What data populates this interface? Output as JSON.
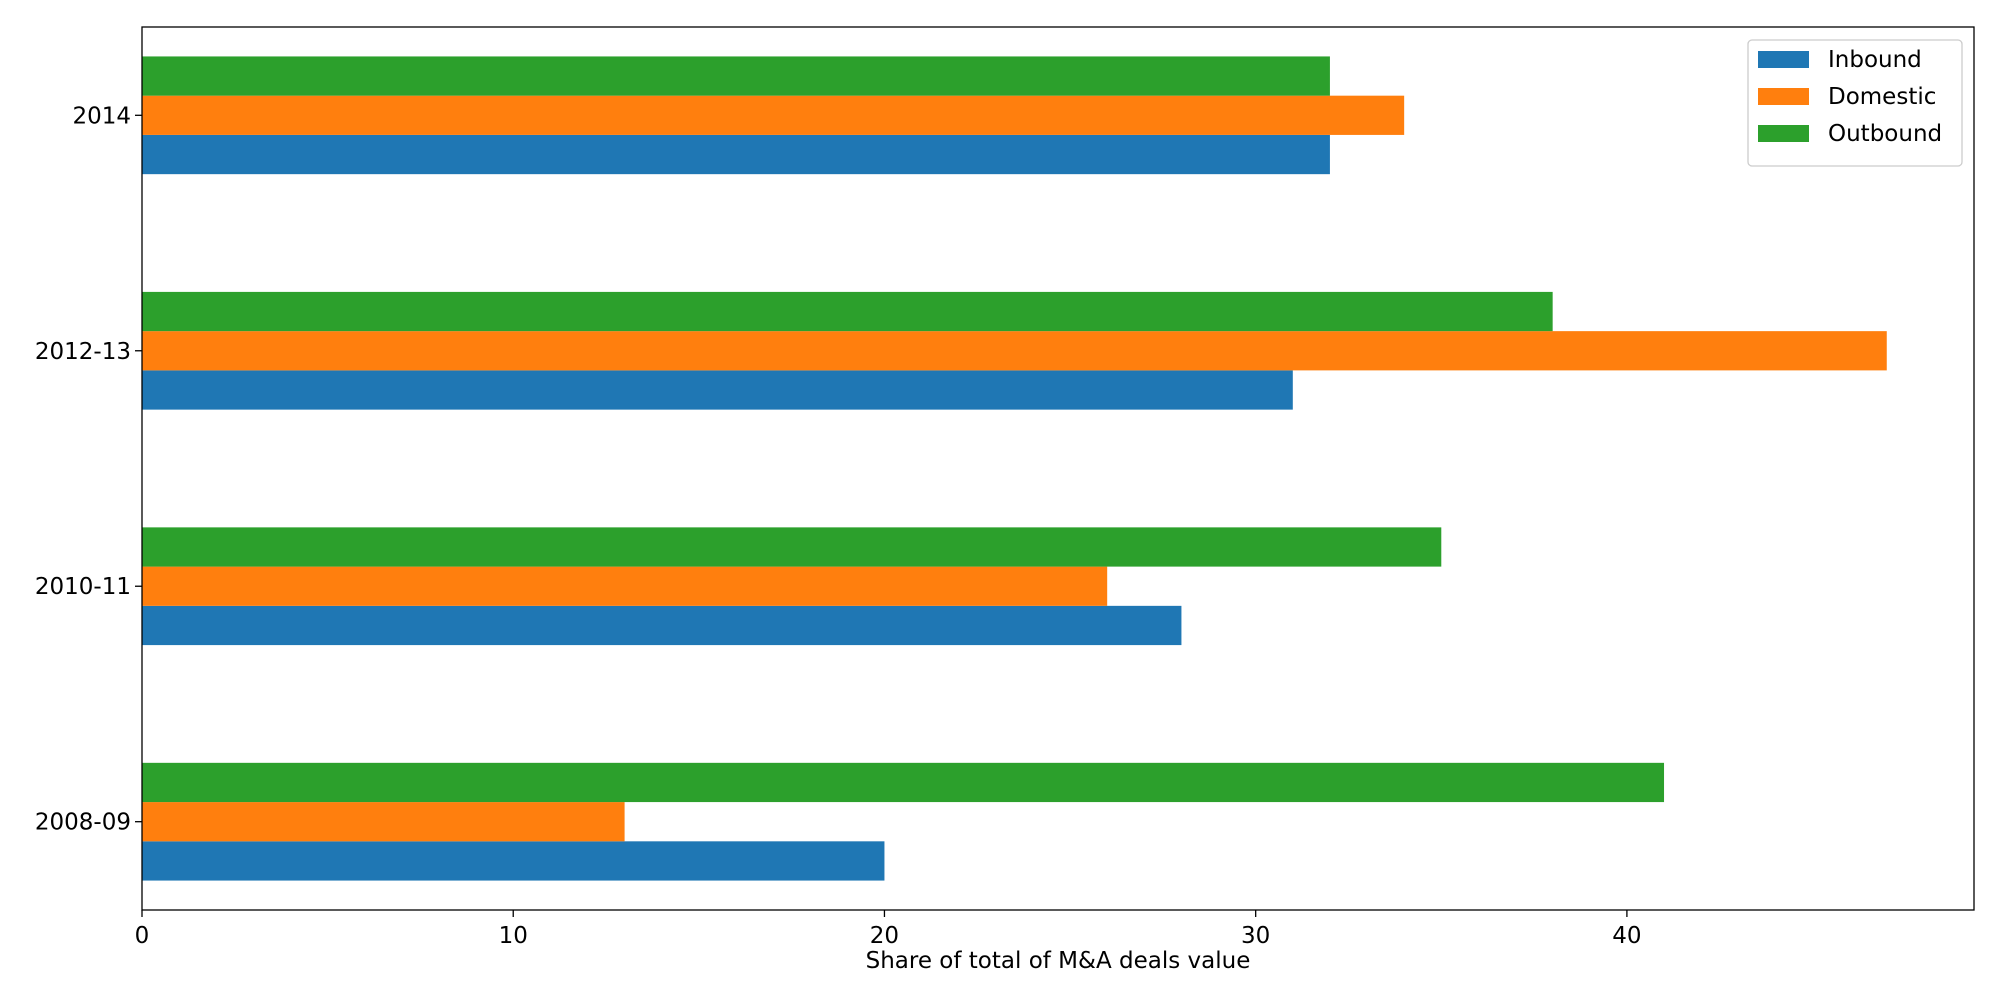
{
  "chart_data": {
    "type": "bar",
    "orientation": "horizontal",
    "categories": [
      "2008-09",
      "2010-11",
      "2012-13",
      "2014"
    ],
    "series": [
      {
        "name": "Inbound",
        "color": "#1f77b4",
        "values": [
          20,
          28,
          31,
          32
        ]
      },
      {
        "name": "Domestic",
        "color": "#ff7f0e",
        "values": [
          13,
          26,
          47,
          34
        ]
      },
      {
        "name": "Outbound",
        "color": "#2ca02c",
        "values": [
          41,
          35,
          38,
          32
        ]
      }
    ],
    "title": "",
    "xlabel": "Share of total of M&A deals value",
    "ylabel": "",
    "xlim": [
      0,
      49.35
    ],
    "x_ticks": [
      0,
      10,
      20,
      30,
      40
    ],
    "grid": false,
    "legend_position": "top-right"
  }
}
